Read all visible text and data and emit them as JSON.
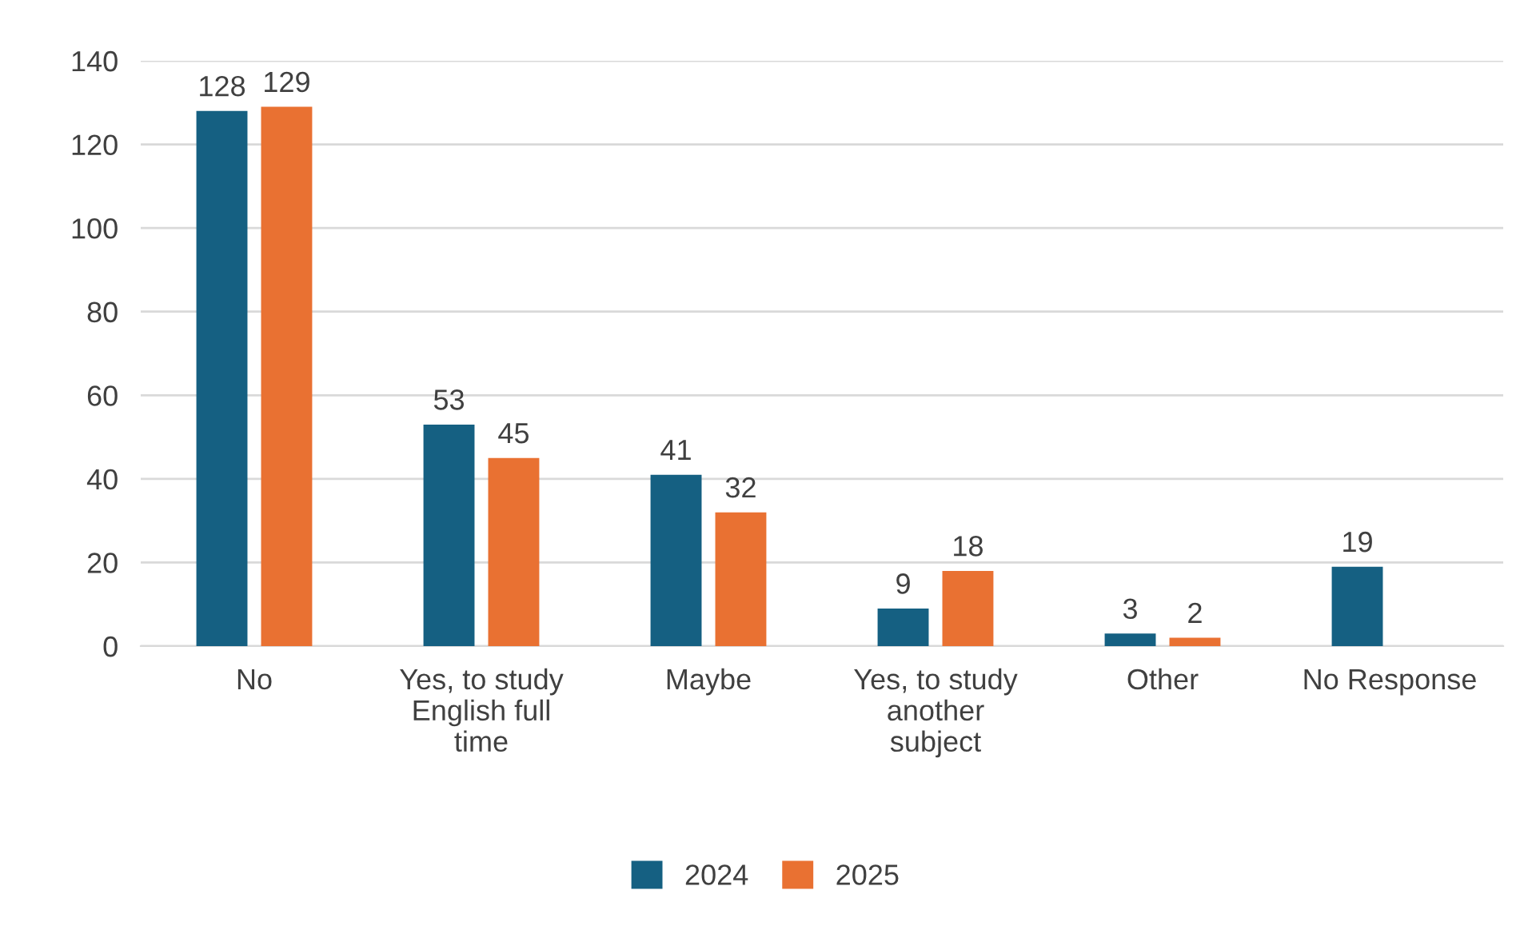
{
  "chart_data": {
    "type": "bar",
    "categories": [
      "No",
      "Yes, to study\nEnglish full\ntime",
      "Maybe",
      "Yes, to study\nanother\nsubject",
      "Other",
      "No Response"
    ],
    "series": [
      {
        "name": "2024",
        "color": "#156082",
        "values": [
          128,
          53,
          41,
          9,
          3,
          19
        ]
      },
      {
        "name": "2025",
        "color": "#e97132",
        "values": [
          129,
          45,
          32,
          18,
          2,
          null
        ]
      }
    ],
    "ylim": [
      0,
      140
    ],
    "yticks": [
      0,
      20,
      40,
      60,
      80,
      100,
      120,
      140
    ],
    "grid": "y",
    "legend": "bottom",
    "data_labels": true
  }
}
